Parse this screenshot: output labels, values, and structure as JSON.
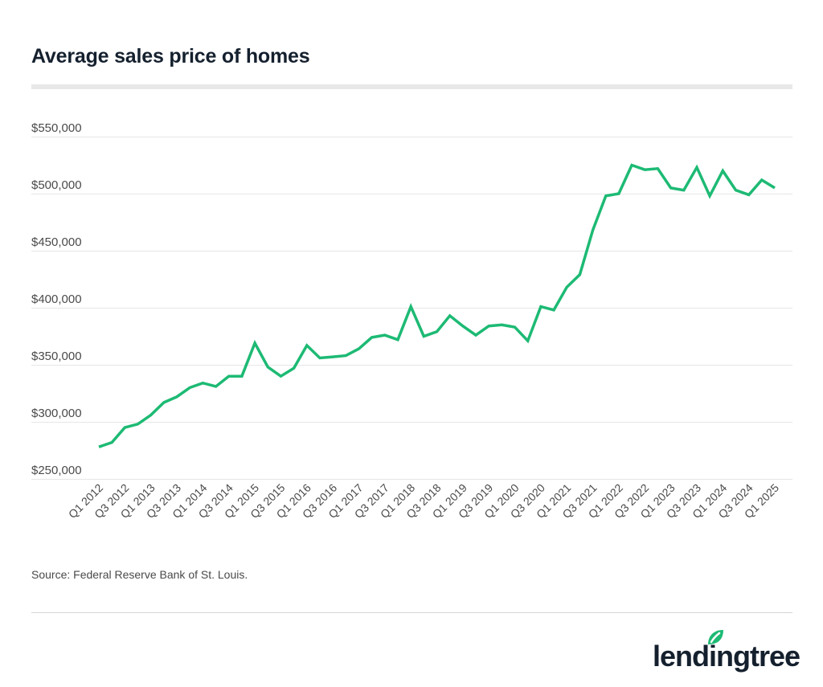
{
  "header": {
    "title": "Average sales price of homes"
  },
  "footer": {
    "source": "Source: Federal Reserve Bank of St. Louis.",
    "logo_text": "lendingtree",
    "logo_mark": "®"
  },
  "colors": {
    "line": "#1dba74",
    "title": "#15202e",
    "text": "#4a4a4a",
    "grid": "#e6e6e6",
    "logo_leaf": "#1dba74"
  },
  "chart_data": {
    "type": "line",
    "title": "Average sales price of homes",
    "xlabel": "",
    "ylabel": "",
    "ylim": [
      250000,
      550000
    ],
    "yticks": [
      250000,
      300000,
      350000,
      400000,
      450000,
      500000,
      550000
    ],
    "ytick_labels": [
      "$250,000",
      "$300,000",
      "$350,000",
      "$400,000",
      "$450,000",
      "$500,000",
      "$550,000"
    ],
    "grid": true,
    "legend": "none",
    "x": [
      "Q1 2012",
      "Q2 2012",
      "Q3 2012",
      "Q4 2012",
      "Q1 2013",
      "Q2 2013",
      "Q3 2013",
      "Q4 2013",
      "Q1 2014",
      "Q2 2014",
      "Q3 2014",
      "Q4 2014",
      "Q1 2015",
      "Q2 2015",
      "Q3 2015",
      "Q4 2015",
      "Q1 2016",
      "Q2 2016",
      "Q3 2016",
      "Q4 2016",
      "Q1 2017",
      "Q2 2017",
      "Q3 2017",
      "Q4 2017",
      "Q1 2018",
      "Q2 2018",
      "Q3 2018",
      "Q4 2018",
      "Q1 2019",
      "Q2 2019",
      "Q3 2019",
      "Q4 2019",
      "Q1 2020",
      "Q2 2020",
      "Q3 2020",
      "Q4 2020",
      "Q1 2021",
      "Q2 2021",
      "Q3 2021",
      "Q4 2021",
      "Q1 2022",
      "Q2 2022",
      "Q3 2022",
      "Q4 2022",
      "Q1 2023",
      "Q2 2023",
      "Q3 2023",
      "Q4 2023",
      "Q1 2024",
      "Q2 2024",
      "Q3 2024",
      "Q4 2024",
      "Q1 2025"
    ],
    "xtick_labels": [
      "Q1 2012",
      "Q3 2012",
      "Q1 2013",
      "Q3 2013",
      "Q1 2014",
      "Q3 2014",
      "Q1 2015",
      "Q3 2015",
      "Q1 2016",
      "Q3 2016",
      "Q1 2017",
      "Q3 2017",
      "Q1 2018",
      "Q3 2018",
      "Q1 2019",
      "Q3 2019",
      "Q1 2020",
      "Q3 2020",
      "Q1 2021",
      "Q3 2021",
      "Q1 2022",
      "Q3 2022",
      "Q1 2023",
      "Q3 2023",
      "Q1 2024",
      "Q3 2024",
      "Q1 2025"
    ],
    "series": [
      {
        "name": "Average sales price",
        "values": [
          278000,
          282000,
          295000,
          298000,
          306000,
          317000,
          322000,
          330000,
          334000,
          331000,
          340000,
          340000,
          369000,
          348000,
          340000,
          347000,
          367000,
          356000,
          357000,
          358000,
          364000,
          374000,
          376000,
          372000,
          401000,
          375000,
          379000,
          393000,
          384000,
          376000,
          384000,
          385000,
          383000,
          371000,
          401000,
          398000,
          418000,
          429000,
          468000,
          498000,
          500000,
          525000,
          521000,
          522000,
          505000,
          503000,
          523000,
          498000,
          520000,
          503000,
          499000,
          512000,
          505000
        ]
      }
    ]
  }
}
